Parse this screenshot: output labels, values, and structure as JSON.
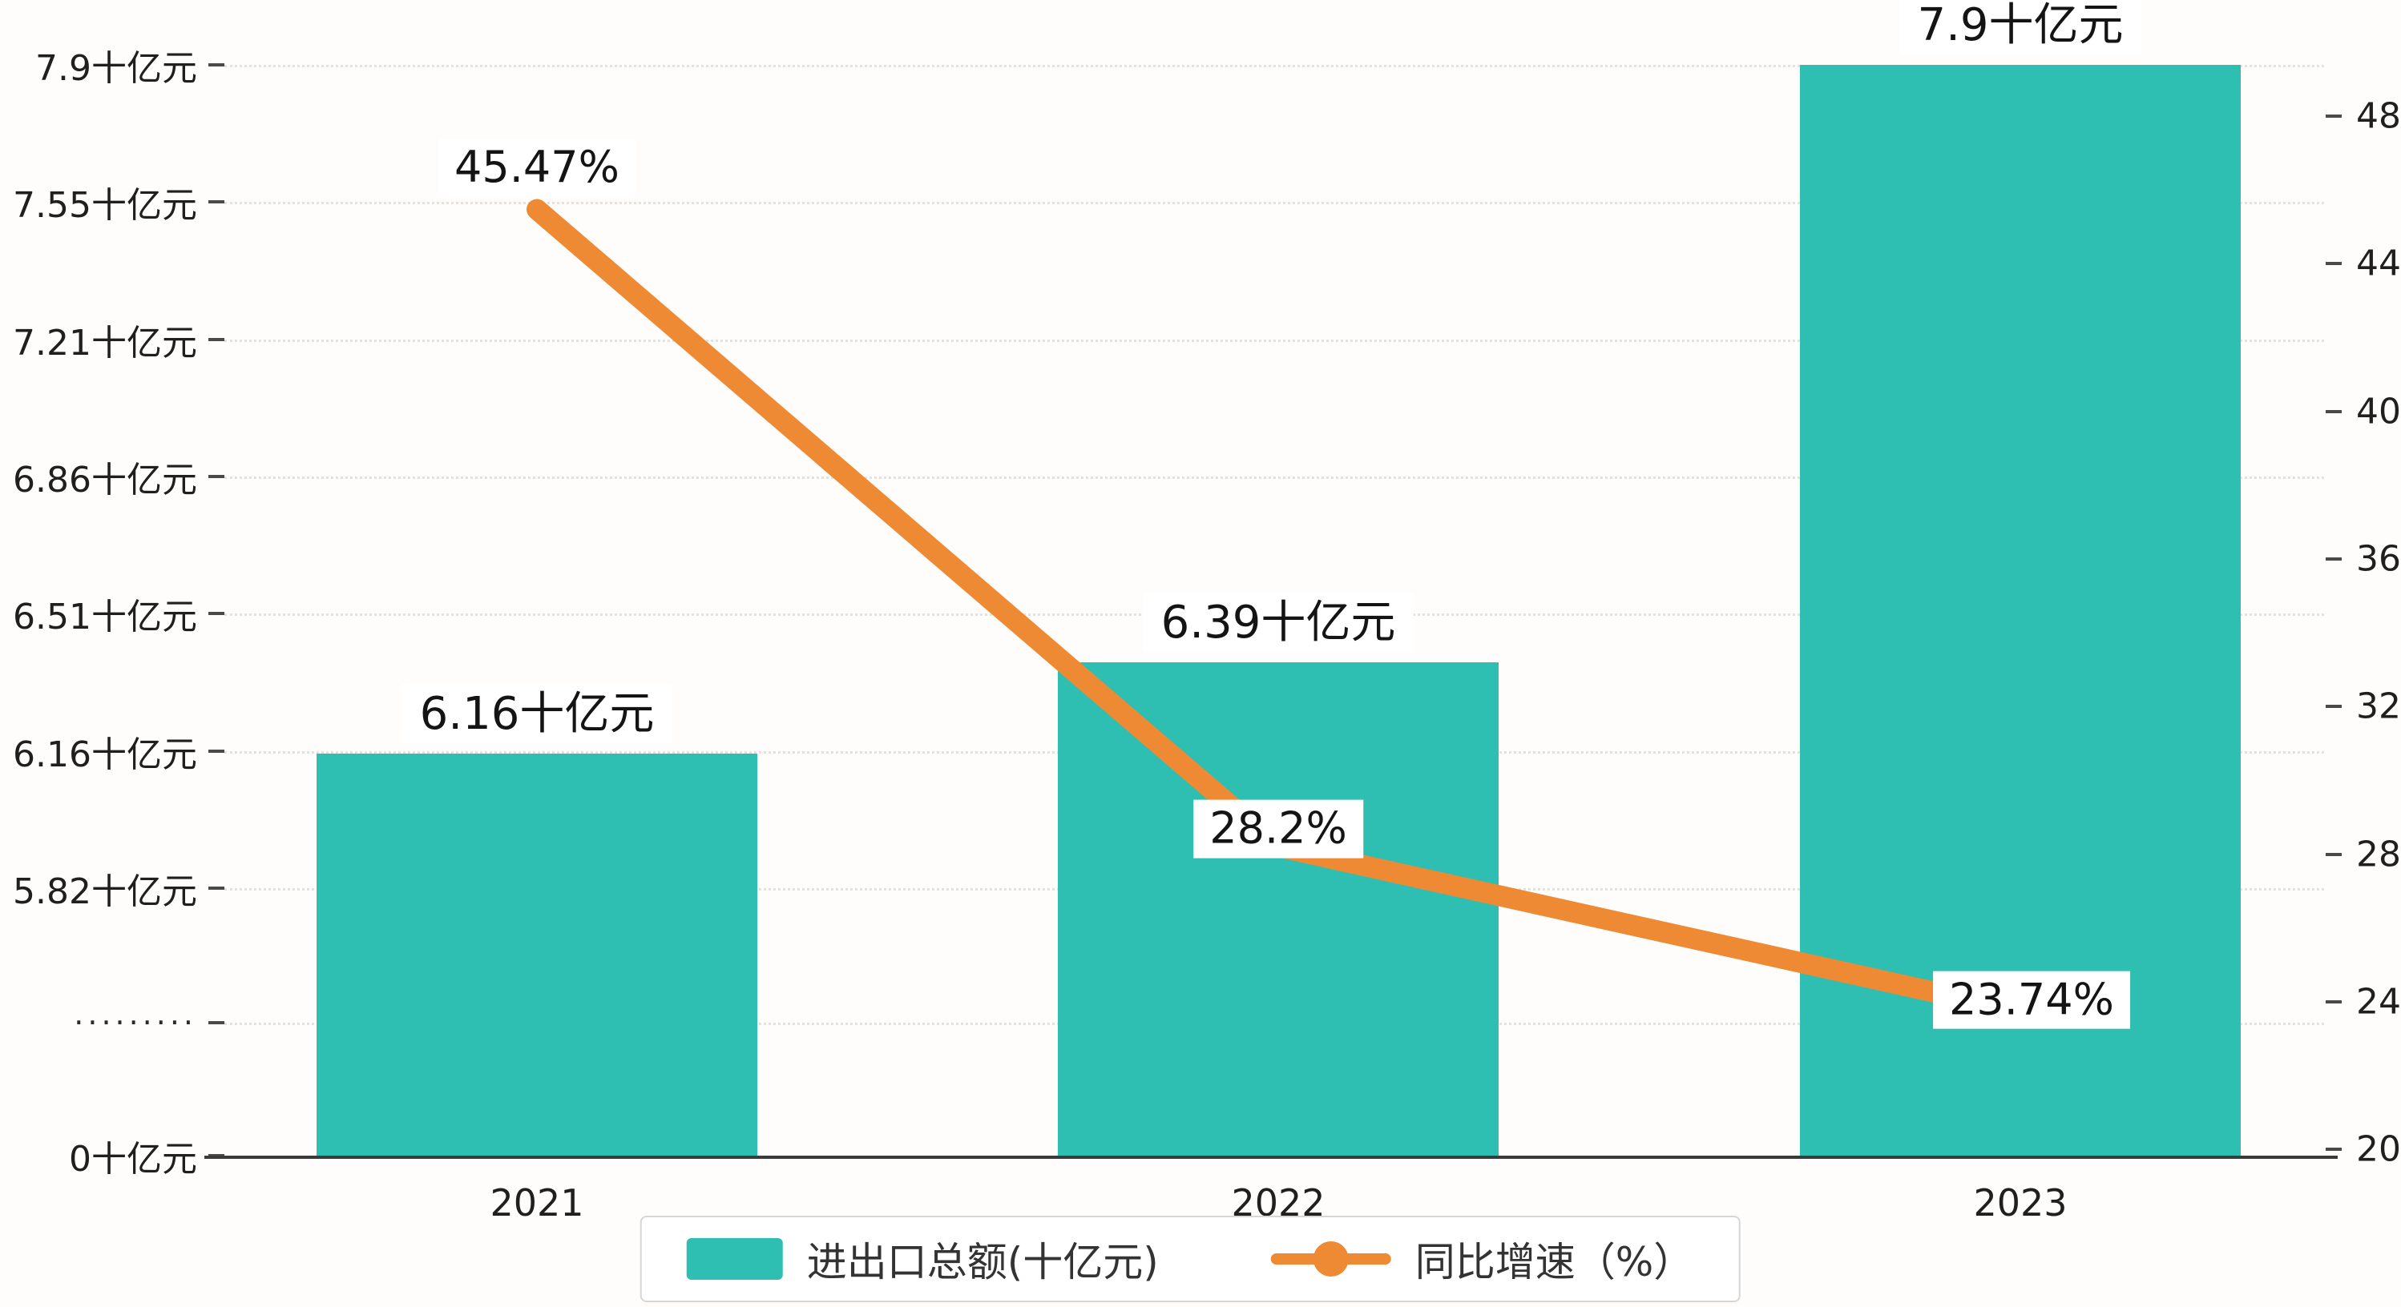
{
  "chart_data": {
    "type": "bar",
    "title": "",
    "categories": [
      "2021",
      "2022",
      "2023"
    ],
    "series": [
      {
        "name": "进出口总额(十亿元)",
        "type": "bar",
        "axis": "left",
        "color": "#2fbfb2",
        "values": [
          6.16,
          6.39,
          7.9
        ],
        "value_labels": [
          "6.16十亿元",
          "6.39十亿元",
          "7.9十亿元"
        ]
      },
      {
        "name": "同比增速（%）",
        "type": "line",
        "axis": "right",
        "color": "#ee8a33",
        "values": [
          45.47,
          28.2,
          23.74
        ],
        "value_labels": [
          "45.47%",
          "28.2%",
          "23.74%"
        ]
      }
    ],
    "left_axis": {
      "tick_labels": [
        "7.9十亿元",
        "7.55十亿元",
        "7.21十亿元",
        "6.86十亿元",
        "6.51十亿元",
        "6.16十亿元",
        "5.82十亿元",
        "·········",
        "0十亿元"
      ],
      "tick_values": [
        7.9,
        7.55,
        7.21,
        6.86,
        6.51,
        6.16,
        5.82,
        null,
        0
      ],
      "axis_break": true
    },
    "right_axis": {
      "tick_labels": [
        "48",
        "44",
        "40",
        "36",
        "32",
        "28",
        "24",
        "20"
      ],
      "min": 20,
      "max": 48
    },
    "legend": {
      "position": "bottom-center",
      "items": [
        {
          "label": "进出口总额(十亿元)",
          "marker": "square",
          "color": "#2fbfb2"
        },
        {
          "label": "同比增速（%）",
          "marker": "line-dot",
          "color": "#ee8a33"
        }
      ]
    },
    "grid": "dotted-horizontal",
    "background": "#fefdfb"
  }
}
